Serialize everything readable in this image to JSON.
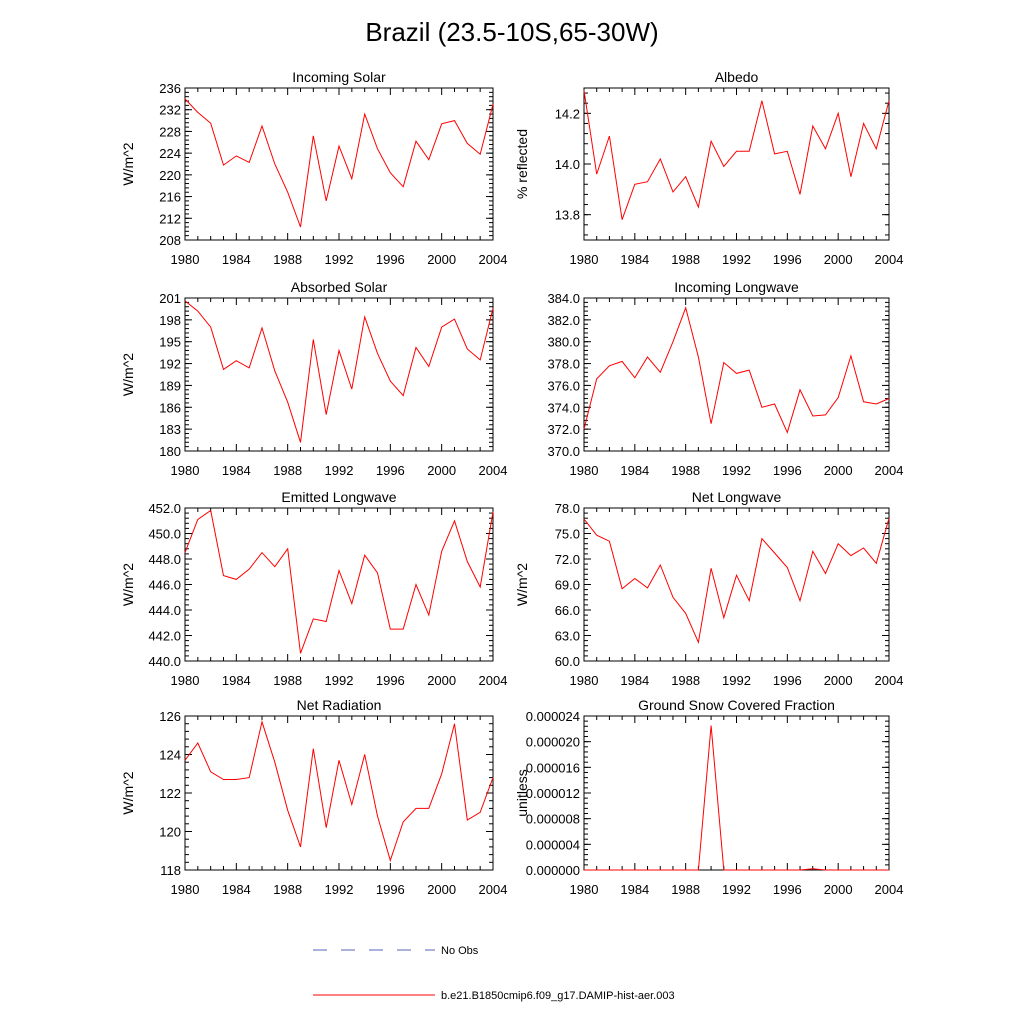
{
  "title": "Brazil (23.5-10S,65-30W)",
  "legend": {
    "items": [
      {
        "label": "No Obs",
        "color": "#5566bb",
        "dashed": true
      },
      {
        "label": "b.e21.B1850cmip6.f09_g17.DAMIP-hist-aer.003",
        "color": "#ff0000",
        "dashed": false
      }
    ]
  },
  "chart_data": [
    {
      "type": "line",
      "title": "Incoming Solar",
      "ylabel": "W/m^2",
      "xlabel": "",
      "xlim": [
        1980,
        2004
      ],
      "ylim": [
        208,
        236
      ],
      "yticks": [
        "208",
        "212",
        "216",
        "220",
        "224",
        "228",
        "232",
        "236"
      ],
      "xticks": [
        "1980",
        "1984",
        "1988",
        "1992",
        "1996",
        "2000",
        "2004"
      ],
      "series": [
        {
          "color": "#ff0000",
          "x": [
            1980,
            1981,
            1982,
            1983,
            1984,
            1985,
            1986,
            1987,
            1988,
            1989,
            1990,
            1991,
            1992,
            1993,
            1994,
            1995,
            1996,
            1997,
            1998,
            1999,
            2000,
            2001,
            2002,
            2003,
            2004
          ],
          "values": [
            234.0,
            231.5,
            229.5,
            221.8,
            223.5,
            222.3,
            229.0,
            222.0,
            216.8,
            210.4,
            227.2,
            215.2,
            225.3,
            219.3,
            231.2,
            224.8,
            220.4,
            217.8,
            226.2,
            222.8,
            229.4,
            230.0,
            225.8,
            223.8,
            233.0
          ]
        }
      ]
    },
    {
      "type": "line",
      "title": "Albedo",
      "ylabel": "% reflected",
      "xlabel": "",
      "xlim": [
        1980,
        2004
      ],
      "ylim": [
        13.7,
        14.3
      ],
      "yticks": [
        "13.8",
        "14.0",
        "14.2"
      ],
      "xticks": [
        "1980",
        "1984",
        "1988",
        "1992",
        "1996",
        "2000",
        "2004"
      ],
      "series": [
        {
          "color": "#ff0000",
          "x": [
            1980,
            1981,
            1982,
            1983,
            1984,
            1985,
            1986,
            1987,
            1988,
            1989,
            1990,
            1991,
            1992,
            1993,
            1994,
            1995,
            1996,
            1997,
            1998,
            1999,
            2000,
            2001,
            2002,
            2003,
            2004
          ],
          "values": [
            14.29,
            13.96,
            14.11,
            13.78,
            13.92,
            13.93,
            14.02,
            13.89,
            13.95,
            13.83,
            14.09,
            13.99,
            14.05,
            14.05,
            14.25,
            14.04,
            14.05,
            13.88,
            14.15,
            14.06,
            14.2,
            13.95,
            14.16,
            14.06,
            14.25
          ]
        }
      ]
    },
    {
      "type": "line",
      "title": "Absorbed Solar",
      "ylabel": "W/m^2",
      "xlabel": "",
      "xlim": [
        1980,
        2004
      ],
      "ylim": [
        180,
        201
      ],
      "yticks": [
        "180",
        "183",
        "186",
        "189",
        "192",
        "195",
        "198",
        "201"
      ],
      "xticks": [
        "1980",
        "1984",
        "1988",
        "1992",
        "1996",
        "2000",
        "2004"
      ],
      "series": [
        {
          "color": "#ff0000",
          "x": [
            1980,
            1981,
            1982,
            1983,
            1984,
            1985,
            1986,
            1987,
            1988,
            1989,
            1990,
            1991,
            1992,
            1993,
            1994,
            1995,
            1996,
            1997,
            1998,
            1999,
            2000,
            2001,
            2002,
            2003,
            2004
          ],
          "values": [
            200.6,
            199.2,
            197.0,
            191.2,
            192.4,
            191.4,
            196.9,
            191.0,
            186.7,
            181.2,
            195.3,
            185.0,
            193.8,
            188.5,
            198.4,
            193.4,
            189.6,
            187.6,
            194.2,
            191.6,
            197.0,
            198.1,
            194.0,
            192.5,
            199.6
          ]
        }
      ]
    },
    {
      "type": "line",
      "title": "Incoming Longwave",
      "ylabel": "",
      "xlabel": "",
      "xlim": [
        1980,
        2004
      ],
      "ylim": [
        370,
        384
      ],
      "yticks": [
        "370.0",
        "372.0",
        "374.0",
        "376.0",
        "378.0",
        "380.0",
        "382.0",
        "384.0"
      ],
      "xticks": [
        "1980",
        "1984",
        "1988",
        "1992",
        "1996",
        "2000",
        "2004"
      ],
      "series": [
        {
          "color": "#ff0000",
          "x": [
            1980,
            1981,
            1982,
            1983,
            1984,
            1985,
            1986,
            1987,
            1988,
            1989,
            1990,
            1991,
            1992,
            1993,
            1994,
            1995,
            1996,
            1997,
            1998,
            1999,
            2000,
            2001,
            2002,
            2003,
            2004
          ],
          "values": [
            372.0,
            376.6,
            377.8,
            378.2,
            376.7,
            378.6,
            377.2,
            380.0,
            383.1,
            378.6,
            372.5,
            378.1,
            377.1,
            377.4,
            374.0,
            374.3,
            371.7,
            375.6,
            373.2,
            373.3,
            374.9,
            378.7,
            374.5,
            374.3,
            374.8
          ]
        }
      ]
    },
    {
      "type": "line",
      "title": "Emitted Longwave",
      "ylabel": "W/m^2",
      "xlabel": "",
      "xlim": [
        1980,
        2004
      ],
      "ylim": [
        440,
        452
      ],
      "yticks": [
        "440.0",
        "442.0",
        "444.0",
        "446.0",
        "448.0",
        "450.0",
        "452.0"
      ],
      "xticks": [
        "1980",
        "1984",
        "1988",
        "1992",
        "1996",
        "2000",
        "2004"
      ],
      "series": [
        {
          "color": "#ff0000",
          "x": [
            1980,
            1981,
            1982,
            1983,
            1984,
            1985,
            1986,
            1987,
            1988,
            1989,
            1990,
            1991,
            1992,
            1993,
            1994,
            1995,
            1996,
            1997,
            1998,
            1999,
            2000,
            2001,
            2002,
            2003,
            2004
          ],
          "values": [
            448.5,
            451.1,
            451.8,
            446.7,
            446.4,
            447.2,
            448.5,
            447.4,
            448.8,
            440.6,
            443.3,
            443.1,
            447.1,
            444.5,
            448.3,
            446.9,
            442.5,
            442.5,
            446.0,
            443.6,
            448.6,
            451.0,
            447.8,
            445.8,
            451.7
          ]
        }
      ]
    },
    {
      "type": "line",
      "title": "Net Longwave",
      "ylabel": "W/m^2",
      "xlabel": "",
      "xlim": [
        1980,
        2004
      ],
      "ylim": [
        60,
        78
      ],
      "yticks": [
        "60.0",
        "63.0",
        "66.0",
        "69.0",
        "72.0",
        "75.0",
        "78.0"
      ],
      "xticks": [
        "1980",
        "1984",
        "1988",
        "1992",
        "1996",
        "2000",
        "2004"
      ],
      "series": [
        {
          "color": "#ff0000",
          "x": [
            1980,
            1981,
            1982,
            1983,
            1984,
            1985,
            1986,
            1987,
            1988,
            1989,
            1990,
            1991,
            1992,
            1993,
            1994,
            1995,
            1996,
            1997,
            1998,
            1999,
            2000,
            2001,
            2002,
            2003,
            2004
          ],
          "values": [
            76.7,
            74.8,
            74.1,
            68.5,
            69.7,
            68.6,
            71.3,
            67.5,
            65.6,
            62.2,
            70.9,
            65.1,
            70.1,
            67.1,
            74.4,
            72.7,
            71.0,
            67.1,
            72.9,
            70.3,
            73.8,
            72.4,
            73.3,
            71.5,
            76.8
          ]
        }
      ]
    },
    {
      "type": "line",
      "title": "Net Radiation",
      "ylabel": "W/m^2",
      "xlabel": "",
      "xlim": [
        1980,
        2004
      ],
      "ylim": [
        118,
        126
      ],
      "yticks": [
        "118",
        "120",
        "122",
        "124",
        "126"
      ],
      "xticks": [
        "1980",
        "1984",
        "1988",
        "1992",
        "1996",
        "2000",
        "2004"
      ],
      "series": [
        {
          "color": "#ff0000",
          "x": [
            1980,
            1981,
            1982,
            1983,
            1984,
            1985,
            1986,
            1987,
            1988,
            1989,
            1990,
            1991,
            1992,
            1993,
            1994,
            1995,
            1996,
            1997,
            1998,
            1999,
            2000,
            2001,
            2002,
            2003,
            2004
          ],
          "values": [
            123.7,
            124.6,
            123.1,
            122.7,
            122.7,
            122.8,
            125.7,
            123.6,
            121.1,
            119.2,
            124.3,
            120.2,
            123.7,
            121.4,
            124.0,
            120.8,
            118.5,
            120.5,
            121.2,
            121.2,
            123.0,
            125.6,
            120.6,
            121.0,
            122.8
          ]
        }
      ]
    },
    {
      "type": "line",
      "title": "Ground Snow Covered Fraction",
      "ylabel": "unitless",
      "xlabel": "",
      "xlim": [
        1980,
        2004
      ],
      "ylim": [
        0,
        2.4e-05
      ],
      "yticks": [
        "0.000000",
        "0.000004",
        "0.000008",
        "0.000012",
        "0.000016",
        "0.000020",
        "0.000024"
      ],
      "xticks": [
        "1980",
        "1984",
        "1988",
        "1992",
        "1996",
        "2000",
        "2004"
      ],
      "series": [
        {
          "color": "#ff0000",
          "x": [
            1980,
            1981,
            1982,
            1983,
            1984,
            1985,
            1986,
            1987,
            1988,
            1989,
            1990,
            1991,
            1992,
            1993,
            1994,
            1995,
            1996,
            1997,
            1998,
            1999,
            2000,
            2001,
            2002,
            2003,
            2004
          ],
          "values": [
            0,
            0,
            0,
            0,
            0,
            0,
            0,
            0,
            0,
            0,
            2.25e-05,
            0,
            0,
            0,
            0,
            0,
            0,
            0,
            2e-07,
            0,
            0,
            0,
            0,
            0,
            0
          ]
        }
      ]
    }
  ]
}
